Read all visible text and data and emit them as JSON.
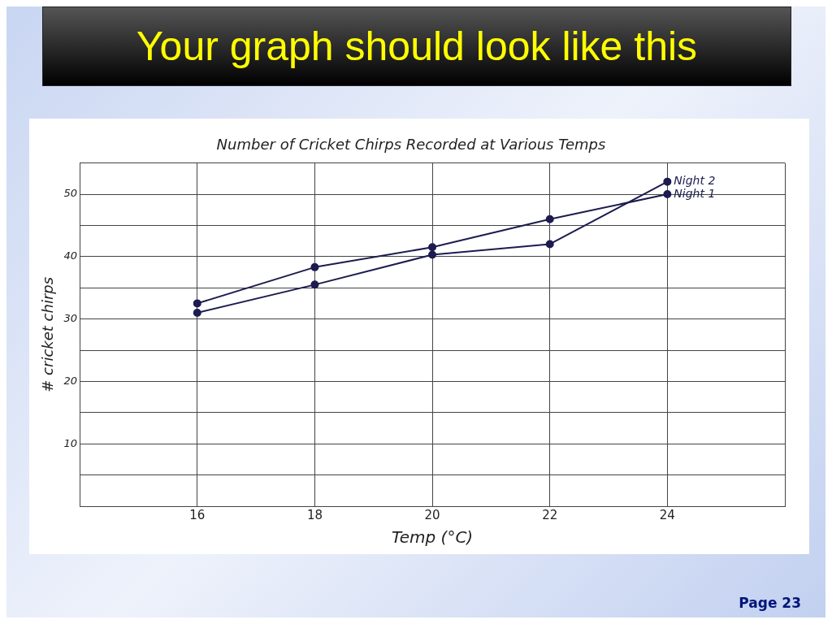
{
  "chart_data": {
    "type": "line",
    "title": "Number of Cricket Chirps Recorded at Various Temps",
    "xlabel": "Temp (°C)",
    "ylabel": "# cricket chirps",
    "annotations": [
      "Your graph should look like this",
      "Page 23"
    ],
    "x": [
      16,
      18,
      20,
      22,
      24
    ],
    "series": [
      {
        "name": "Night 1",
        "color": "#1c1c50",
        "values": [
          32.5,
          38.3,
          41.5,
          46,
          50
        ]
      },
      {
        "name": "Night 2",
        "color": "#1c1c50",
        "values": [
          31,
          35.5,
          40.3,
          42,
          52
        ]
      }
    ],
    "xlim": [
      14,
      26
    ],
    "xticks": [
      {
        "value": 14,
        "label": null
      },
      16,
      18,
      20,
      22,
      24,
      {
        "value": 26,
        "label": null
      }
    ],
    "ylim": [
      0,
      55
    ],
    "yticks": [
      {
        "value": 0,
        "label": null
      },
      {
        "value": 5,
        "label": null
      },
      10,
      {
        "value": 15,
        "label": null
      },
      20,
      {
        "value": 25,
        "label": null
      },
      30,
      {
        "value": 35,
        "label": null
      },
      40,
      {
        "value": 45,
        "label": null
      },
      50,
      {
        "value": 55,
        "label": null
      }
    ],
    "grid": true,
    "legend": false,
    "marker": "circle",
    "line_style": "solid"
  }
}
